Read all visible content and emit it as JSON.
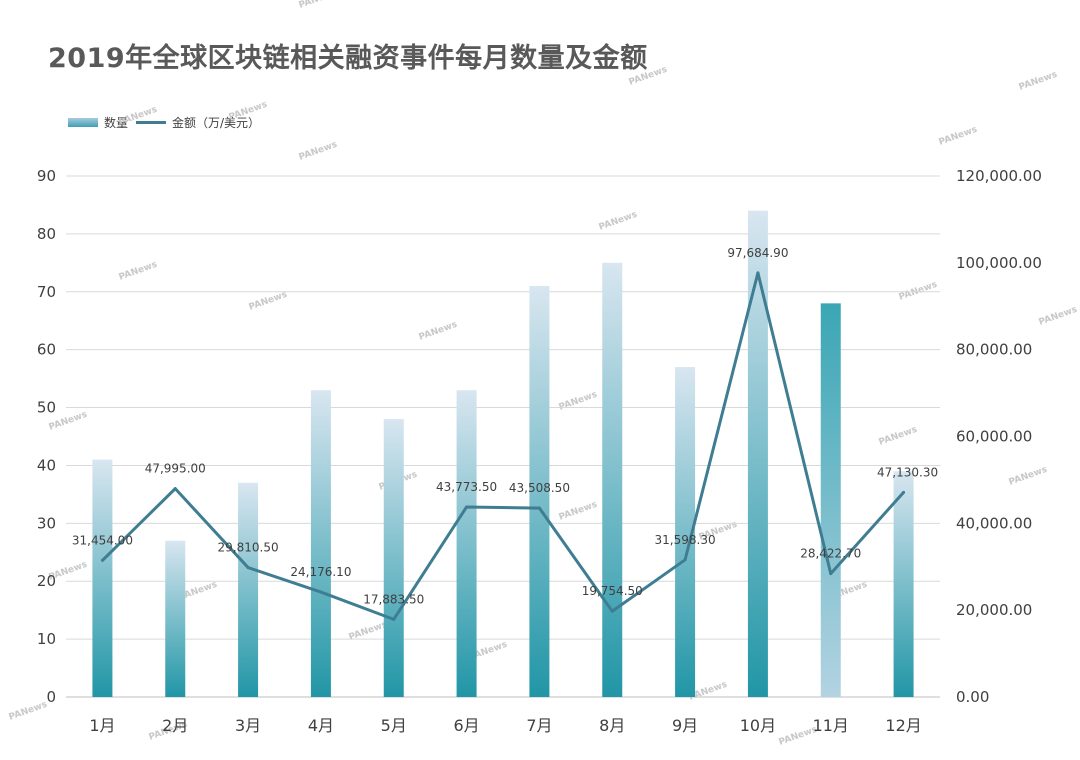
{
  "chart_data": {
    "type": "bar",
    "title": "2019年全球区块链相关融资事件每月数量及金额",
    "categories": [
      "1月",
      "2月",
      "3月",
      "4月",
      "5月",
      "6月",
      "7月",
      "8月",
      "9月",
      "10月",
      "11月",
      "12月"
    ],
    "series": [
      {
        "name": "数量",
        "type": "bar",
        "axis": "left",
        "values": [
          41,
          27,
          37,
          53,
          48,
          53,
          71,
          75,
          57,
          84,
          68,
          39
        ]
      },
      {
        "name": "金额（万/美元）",
        "type": "line",
        "axis": "right",
        "values": [
          31454.0,
          47995.0,
          29810.5,
          24176.1,
          17883.5,
          43773.5,
          43508.5,
          19754.5,
          31598.3,
          97684.9,
          28422.7,
          47130.3
        ]
      }
    ],
    "data_labels": [
      "31,454.00",
      "47,995.00",
      "29,810.50",
      "24,176.10",
      "17,883.50",
      "43,773.50",
      "43,508.50",
      "19,754.50",
      "31,598.30",
      "97,684.90",
      "28,422.70",
      "47,130.30"
    ],
    "y_left": {
      "range": [
        0,
        90
      ],
      "ticks": [
        "0",
        "10",
        "20",
        "30",
        "40",
        "50",
        "60",
        "70",
        "80",
        "90"
      ]
    },
    "y_right": {
      "range": [
        0,
        120000
      ],
      "ticks": [
        "0.00",
        "20,000.00",
        "40,000.00",
        "60,000.00",
        "80,000.00",
        "100,000.00",
        "120,000.00"
      ]
    },
    "legend_position": "top-left",
    "grid": true,
    "colors": {
      "bar_top": "#d8e6f0",
      "bar_bottom": "#2196a6",
      "line": "#3f7d92",
      "grid": "#d9d9d9",
      "title": "#595959"
    }
  },
  "watermark": "PANews"
}
